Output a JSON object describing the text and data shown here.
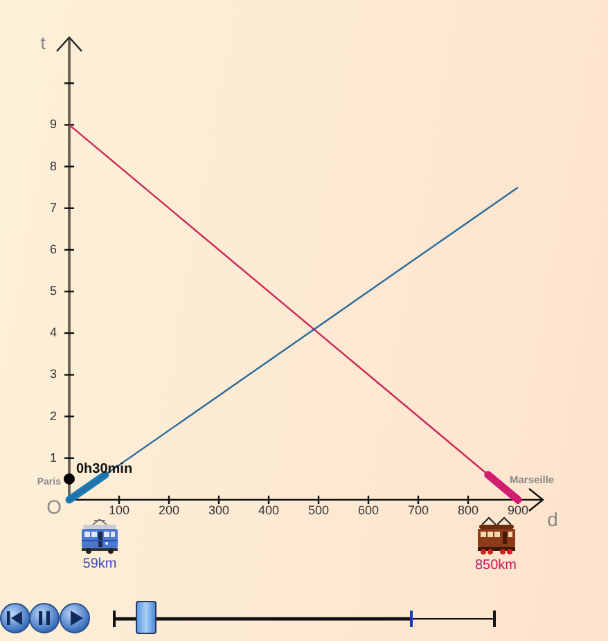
{
  "chart_data": {
    "type": "line",
    "xlabel": "d",
    "ylabel": "t",
    "xlim": [
      0,
      950
    ],
    "ylim": [
      0,
      11.1
    ],
    "xticks": [
      100,
      200,
      300,
      400,
      500,
      600,
      700,
      800,
      900
    ],
    "yticks": [
      1,
      2,
      3,
      4,
      5,
      6,
      7,
      8,
      9,
      {
        "value": 10,
        "label": null
      }
    ],
    "series": [
      {
        "color": "#2a6a9a",
        "x": [
          0,
          900
        ],
        "values": [
          0,
          7.5
        ]
      },
      {
        "color": "#cc2a5a",
        "x": [
          0,
          900
        ],
        "values": [
          9,
          0
        ]
      },
      {
        "color": "#1a7ab8",
        "x": [
          0,
          72
        ],
        "values": [
          0,
          0.6
        ]
      },
      {
        "color": "#d4187a",
        "x": [
          840,
          900
        ],
        "values": [
          0.6,
          0
        ]
      },
      {
        "type": "scatter",
        "color": "#000000",
        "x": [
          0
        ],
        "values": [
          0.5
        ],
        "marker": "circle"
      }
    ],
    "annotations": [
      "O",
      "Paris",
      "Marseille",
      {
        "text": "0h30min",
        "x": 0,
        "y": 0.5
      },
      "59km",
      "850km"
    ]
  }
}
